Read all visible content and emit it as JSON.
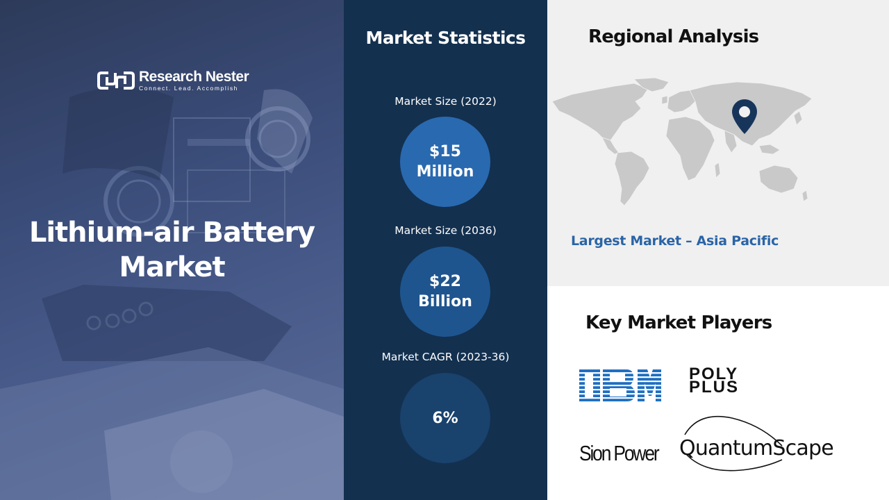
{
  "brand": {
    "name": "Research Nester",
    "tagline": "Connect. Lead. Accomplish"
  },
  "title": {
    "line1": "Lithium-air Battery",
    "line2": "Market"
  },
  "market_statistics": {
    "heading": "Market Statistics",
    "stats": [
      {
        "label": "Market Size (2022)",
        "value_line1": "$15",
        "value_line2": "Million"
      },
      {
        "label": "Market Size (2036)",
        "value_line1": "$22",
        "value_line2": "Billion"
      },
      {
        "label": "Market CAGR (2023-36)",
        "value_line1": "6%",
        "value_line2": ""
      }
    ]
  },
  "regional_analysis": {
    "heading": "Regional Analysis",
    "largest_market": "Largest Market – Asia Pacific",
    "marker_icon": "location-pin-icon"
  },
  "key_players": {
    "heading": "Key Market Players",
    "logos": [
      "IBM",
      "POLY PLUS",
      "Sion Power",
      "QuantumScape"
    ],
    "poly_line1": "POLY",
    "poly_line2": "PLUS"
  },
  "colors": {
    "mid_panel": "#13304f",
    "accent_blue": "#2a64a6",
    "pin": "#17355a",
    "ibm_blue": "#1f6fc2"
  }
}
